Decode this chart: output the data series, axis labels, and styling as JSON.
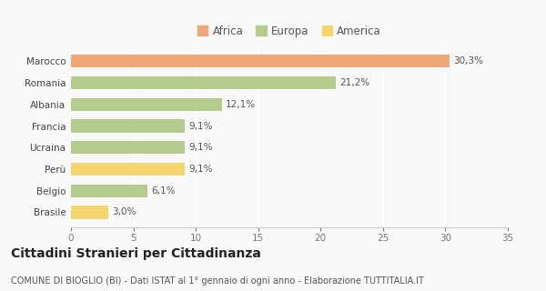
{
  "categories": [
    "Brasile",
    "Belgio",
    "Perù",
    "Ucraina",
    "Francia",
    "Albania",
    "Romania",
    "Marocco"
  ],
  "values": [
    3.0,
    6.1,
    9.1,
    9.1,
    9.1,
    12.1,
    21.2,
    30.3
  ],
  "labels": [
    "3,0%",
    "6,1%",
    "9,1%",
    "9,1%",
    "9,1%",
    "12,1%",
    "21,2%",
    "30,3%"
  ],
  "colors": [
    "#f5d570",
    "#b5cc8e",
    "#f5d570",
    "#b5cc8e",
    "#b5cc8e",
    "#b5cc8e",
    "#b5cc8e",
    "#f0a878"
  ],
  "legend_entries": [
    {
      "label": "Africa",
      "color": "#f0a878"
    },
    {
      "label": "Europa",
      "color": "#b5cc8e"
    },
    {
      "label": "America",
      "color": "#f5d570"
    }
  ],
  "xlim": [
    0,
    35
  ],
  "xticks": [
    0,
    5,
    10,
    15,
    20,
    25,
    30,
    35
  ],
  "title": "Cittadini Stranieri per Cittadinanza",
  "subtitle": "COMUNE DI BIOGLIO (BI) - Dati ISTAT al 1° gennaio di ogni anno - Elaborazione TUTTITALIA.IT",
  "bar_height": 0.6,
  "bg_color": "#f9f9f9",
  "grid_color": "#ffffff",
  "label_fontsize": 7.5,
  "tick_fontsize": 7.5,
  "ylabel_fontsize": 7.5,
  "title_fontsize": 10,
  "subtitle_fontsize": 7,
  "legend_fontsize": 8.5
}
